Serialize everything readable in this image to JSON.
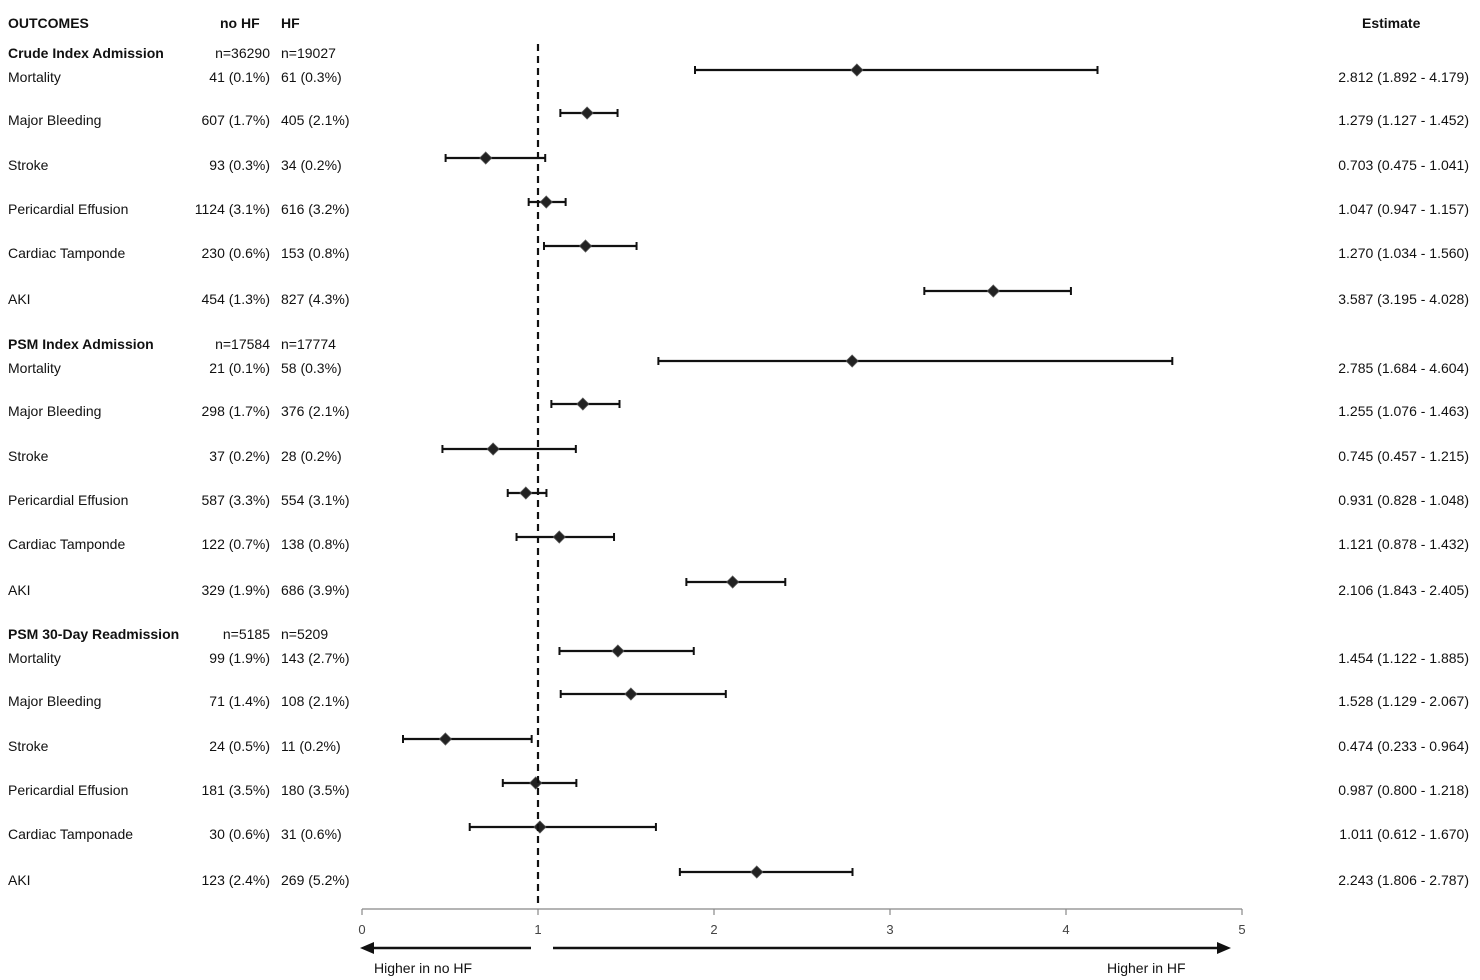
{
  "header": {
    "outcomes_label": "OUTCOMES",
    "nohf_label": "no HF",
    "hf_label": "HF",
    "estimate_label": "Estimate"
  },
  "chart_data": {
    "type": "forest",
    "title": "",
    "xlabel": "",
    "xlim": [
      0,
      5
    ],
    "xticks": [
      0,
      1,
      2,
      3,
      4,
      5
    ],
    "reference_line": 1,
    "direction_labels": {
      "left": "Higher in no HF",
      "right": "Higher in HF"
    },
    "groups": [
      {
        "name": "Crude Index Admission",
        "n_nohf": "n=36290",
        "n_hf": "n=19027",
        "rows": [
          {
            "outcome": "Mortality",
            "nohf": "41 (0.1%)",
            "hf": "61 (0.3%)",
            "estimate": 2.812,
            "lower": 1.892,
            "upper": 4.179,
            "estimate_text": "2.812 (1.892 - 4.179)"
          },
          {
            "outcome": "Major Bleeding",
            "nohf": "607 (1.7%)",
            "hf": "405 (2.1%)",
            "estimate": 1.279,
            "lower": 1.127,
            "upper": 1.452,
            "estimate_text": "1.279 (1.127 - 1.452)"
          },
          {
            "outcome": "Stroke",
            "nohf": "93 (0.3%)",
            "hf": "34 (0.2%)",
            "estimate": 0.703,
            "lower": 0.475,
            "upper": 1.041,
            "estimate_text": "0.703 (0.475 - 1.041)"
          },
          {
            "outcome": "Pericardial Effusion",
            "nohf": "1124 (3.1%)",
            "hf": "616 (3.2%)",
            "estimate": 1.047,
            "lower": 0.947,
            "upper": 1.157,
            "estimate_text": "1.047 (0.947 - 1.157)"
          },
          {
            "outcome": "Cardiac Tamponde",
            "nohf": "230 (0.6%)",
            "hf": "153 (0.8%)",
            "estimate": 1.27,
            "lower": 1.034,
            "upper": 1.56,
            "estimate_text": "1.270 (1.034 - 1.560)"
          },
          {
            "outcome": "AKI",
            "nohf": "454 (1.3%)",
            "hf": "827 (4.3%)",
            "estimate": 3.587,
            "lower": 3.195,
            "upper": 4.028,
            "estimate_text": "3.587 (3.195 - 4.028)"
          }
        ]
      },
      {
        "name": "PSM Index Admission",
        "n_nohf": "n=17584",
        "n_hf": "n=17774",
        "rows": [
          {
            "outcome": "Mortality",
            "nohf": "21 (0.1%)",
            "hf": "58 (0.3%)",
            "estimate": 2.785,
            "lower": 1.684,
            "upper": 4.604,
            "estimate_text": "2.785 (1.684 - 4.604)"
          },
          {
            "outcome": "Major Bleeding",
            "nohf": "298 (1.7%)",
            "hf": "376 (2.1%)",
            "estimate": 1.255,
            "lower": 1.076,
            "upper": 1.463,
            "estimate_text": "1.255 (1.076 - 1.463)"
          },
          {
            "outcome": "Stroke",
            "nohf": "37 (0.2%)",
            "hf": "28 (0.2%)",
            "estimate": 0.745,
            "lower": 0.457,
            "upper": 1.215,
            "estimate_text": "0.745 (0.457 - 1.215)"
          },
          {
            "outcome": "Pericardial Effusion",
            "nohf": "587 (3.3%)",
            "hf": "554 (3.1%)",
            "estimate": 0.931,
            "lower": 0.828,
            "upper": 1.048,
            "estimate_text": "0.931 (0.828 - 1.048)"
          },
          {
            "outcome": "Cardiac Tamponde",
            "nohf": "122 (0.7%)",
            "hf": "138 (0.8%)",
            "estimate": 1.121,
            "lower": 0.878,
            "upper": 1.432,
            "estimate_text": "1.121 (0.878 - 1.432)"
          },
          {
            "outcome": "AKI",
            "nohf": "329 (1.9%)",
            "hf": "686 (3.9%)",
            "estimate": 2.106,
            "lower": 1.843,
            "upper": 2.405,
            "estimate_text": "2.106 (1.843 - 2.405)"
          }
        ]
      },
      {
        "name": "PSM 30-Day Readmission",
        "n_nohf": "n=5185",
        "n_hf": "n=5209",
        "rows": [
          {
            "outcome": "Mortality",
            "nohf": "99 (1.9%)",
            "hf": "143 (2.7%)",
            "estimate": 1.454,
            "lower": 1.122,
            "upper": 1.885,
            "estimate_text": "1.454 (1.122 - 1.885)"
          },
          {
            "outcome": "Major Bleeding",
            "nohf": "71 (1.4%)",
            "hf": "108 (2.1%)",
            "estimate": 1.528,
            "lower": 1.129,
            "upper": 2.067,
            "estimate_text": "1.528 (1.129 - 2.067)"
          },
          {
            "outcome": "Stroke",
            "nohf": "24 (0.5%)",
            "hf": "11 (0.2%)",
            "estimate": 0.474,
            "lower": 0.233,
            "upper": 0.964,
            "estimate_text": "0.474 (0.233 - 0.964)"
          },
          {
            "outcome": "Pericardial Effusion",
            "nohf": "181 (3.5%)",
            "hf": "180 (3.5%)",
            "estimate": 0.987,
            "lower": 0.8,
            "upper": 1.218,
            "estimate_text": "0.987 (0.800 - 1.218)"
          },
          {
            "outcome": "Cardiac Tamponade",
            "nohf": "30 (0.6%)",
            "hf": "31 (0.6%)",
            "estimate": 1.011,
            "lower": 0.612,
            "upper": 1.67,
            "estimate_text": "1.011 (0.612 - 1.670)"
          },
          {
            "outcome": "AKI",
            "nohf": "123 (2.4%)",
            "hf": "269 (5.2%)",
            "estimate": 2.243,
            "lower": 1.806,
            "upper": 2.787,
            "estimate_text": "2.243 (1.806 - 2.787)"
          }
        ]
      }
    ]
  }
}
